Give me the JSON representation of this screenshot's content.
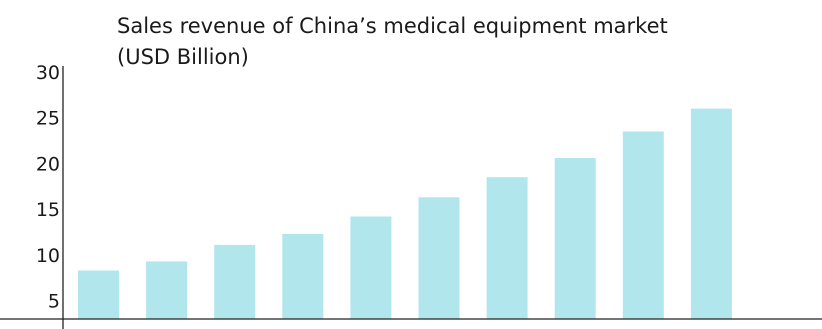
{
  "chart_data": {
    "type": "bar",
    "title": "Sales revenue of China’s medical equipment market",
    "subtitle": "(USD Billion)",
    "xlabel": "",
    "ylabel": "",
    "ylim": [
      3,
      30
    ],
    "yticks": [
      5,
      10,
      15,
      20,
      25,
      30
    ],
    "categories": [
      "",
      "",
      "",
      "",
      "",
      "",
      "",
      "",
      "",
      ""
    ],
    "values": [
      8.3,
      9.3,
      11.1,
      12.3,
      14.2,
      16.3,
      18.5,
      20.6,
      23.5,
      26.0
    ],
    "grid": false,
    "legend": "none",
    "colors": {
      "bar": "#b2e6ed",
      "axis": "#222222",
      "text": "#1a1a1a"
    }
  }
}
